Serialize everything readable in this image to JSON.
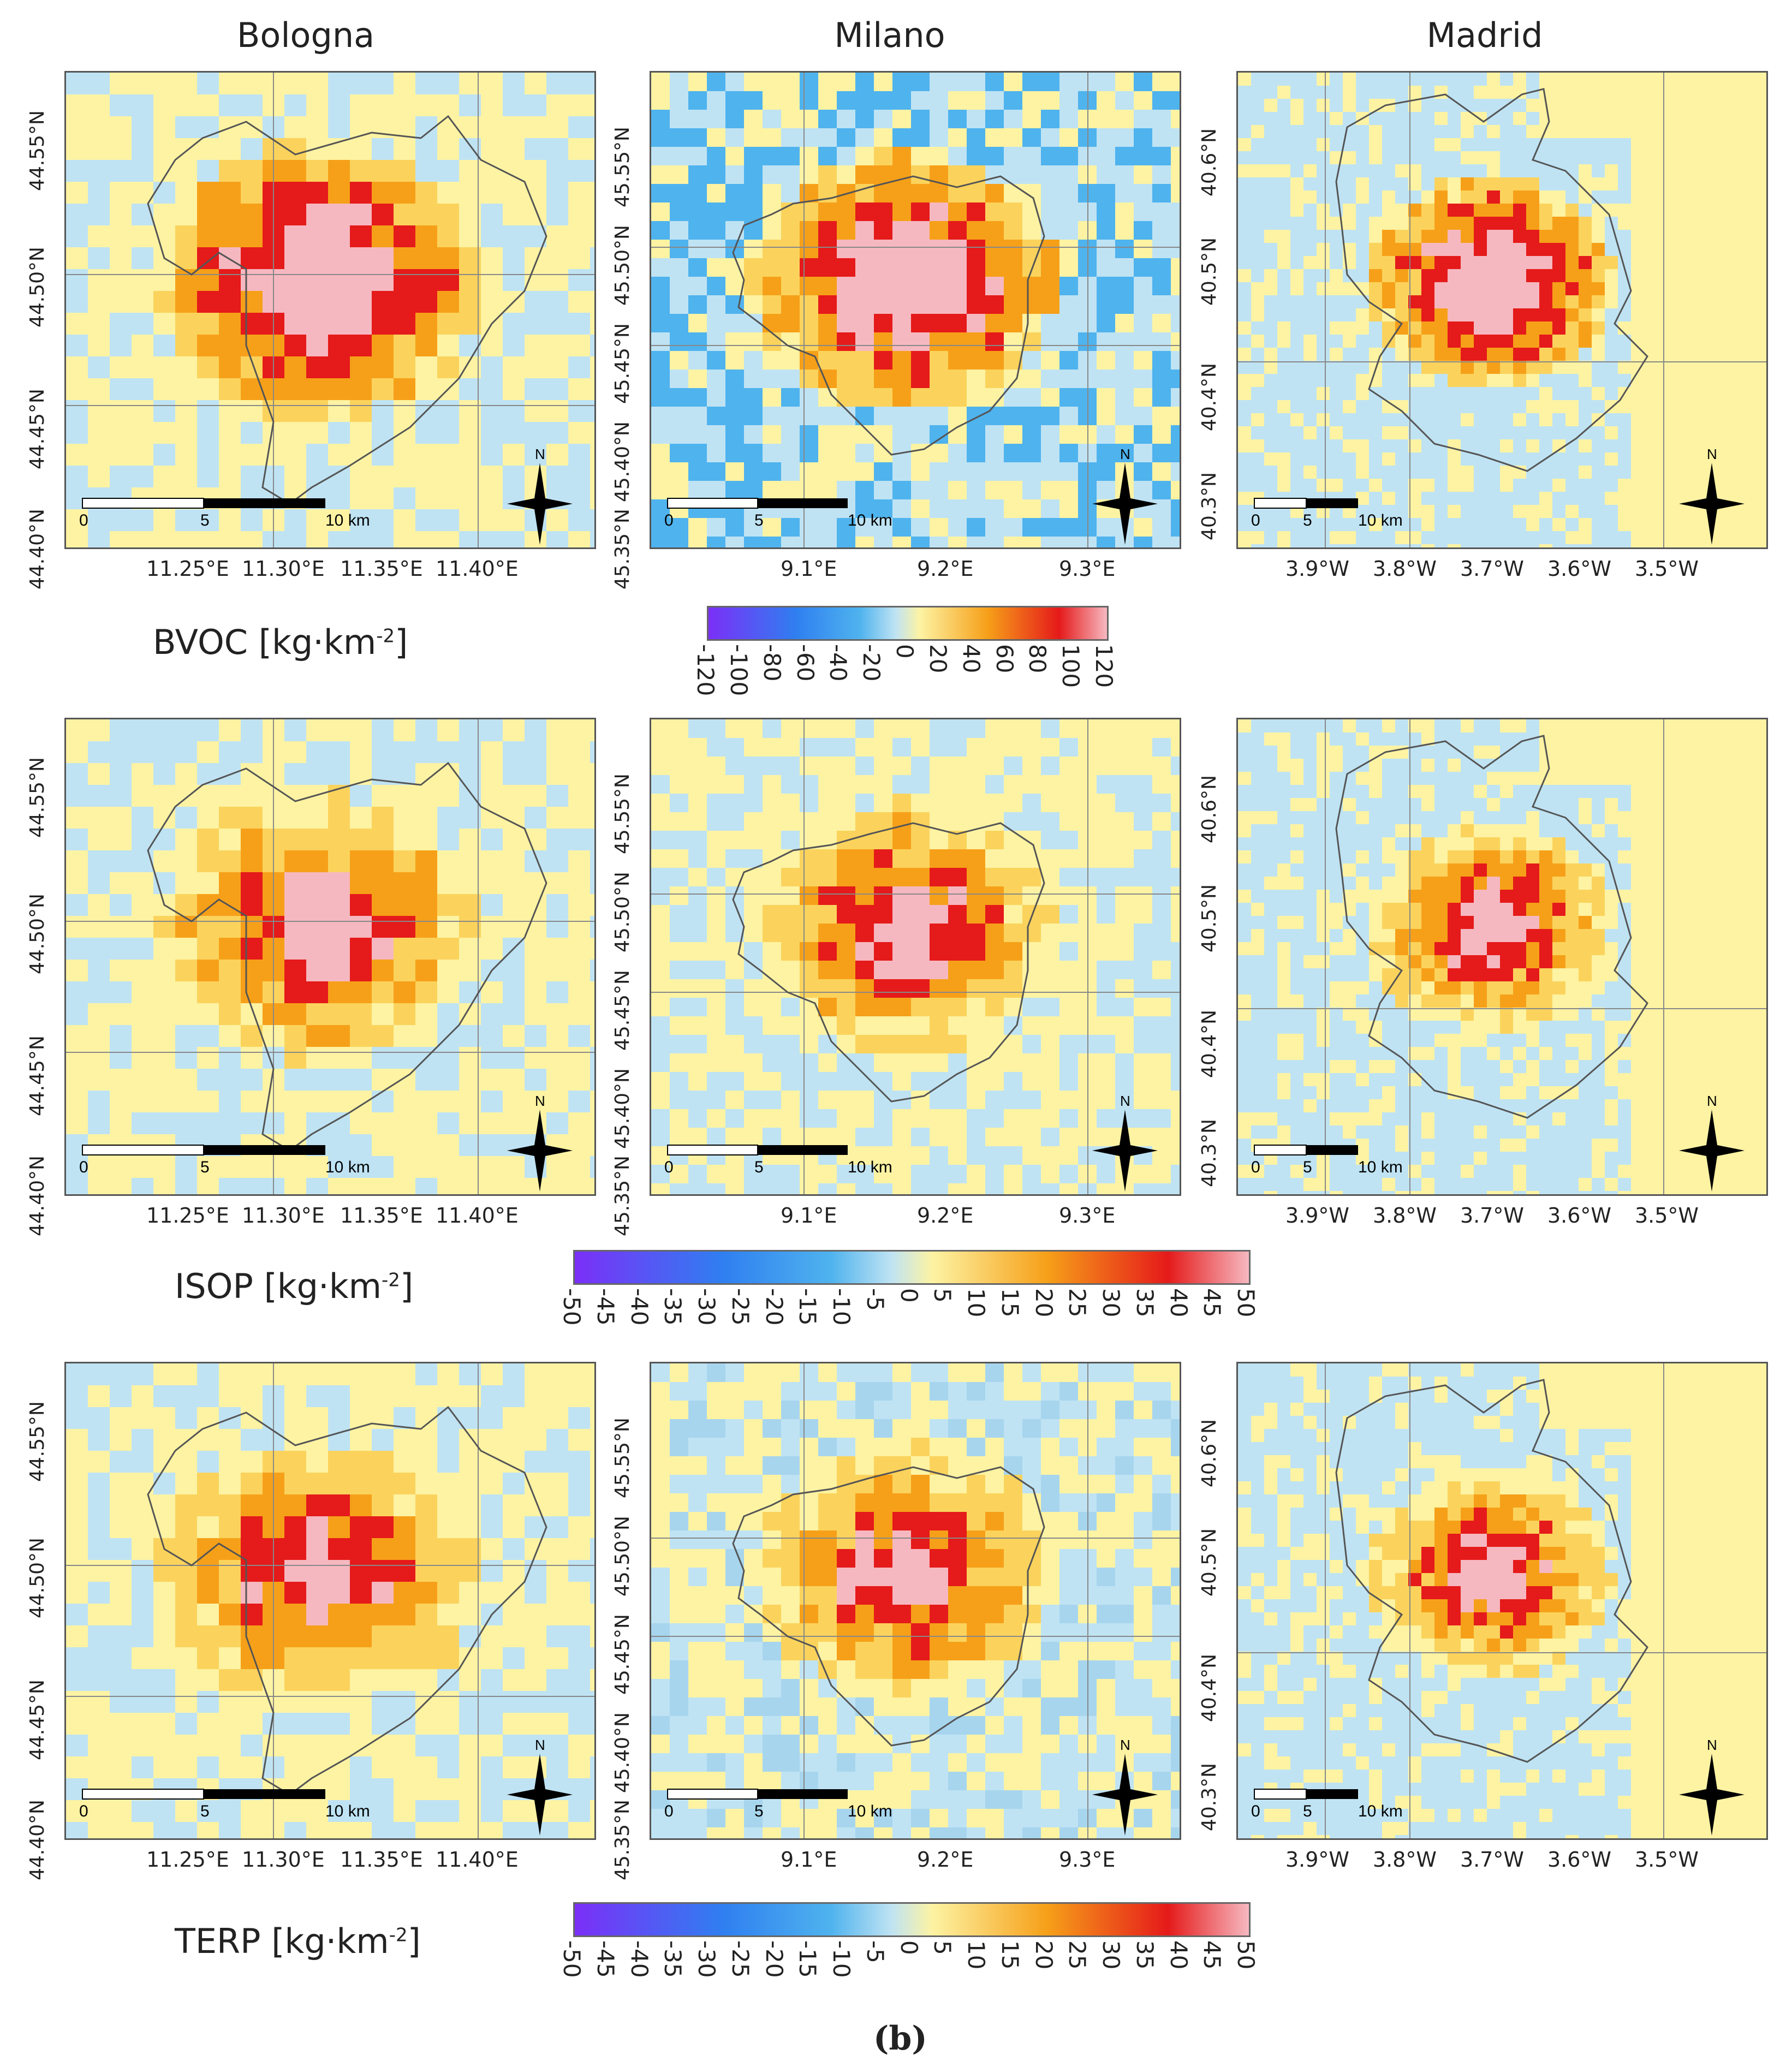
{
  "cities": [
    "Bologna",
    "Milano",
    "Madrid"
  ],
  "variables": [
    {
      "name": "BVOC",
      "unit_base": "[kg·km",
      "unit_exp": "-2",
      "unit_end": "]"
    },
    {
      "name": "ISOP",
      "unit_base": "[kg·km",
      "unit_exp": "-2",
      "unit_end": "]"
    },
    {
      "name": "TERP",
      "unit_base": "[kg·km",
      "unit_exp": "-2",
      "unit_end": "]"
    }
  ],
  "axes": {
    "bologna": {
      "x": [
        "11.25°E",
        "11.30°E",
        "11.35°E",
        "11.40°E"
      ],
      "y": [
        "44.55°N",
        "44.50°N",
        "44.45°N",
        "44.40°N"
      ]
    },
    "milano": {
      "x": [
        "9.1°E",
        "9.2°E",
        "9.3°E"
      ],
      "y": [
        "45.55°N",
        "45.50°N",
        "45.45°N",
        "45.40°N",
        "45.35°N"
      ]
    },
    "madrid": {
      "x": [
        "3.9°W",
        "3.8°W",
        "3.7°W",
        "3.6°W",
        "3.5°W"
      ],
      "y": [
        "40.6°N",
        "40.5°N",
        "40.4°N",
        "40.3°N"
      ]
    }
  },
  "scalebars": {
    "bologna": {
      "labels": [
        "0",
        "5",
        "10 km"
      ]
    },
    "milano": {
      "labels": [
        "0",
        "5",
        "10 km"
      ]
    },
    "madrid": {
      "labels": [
        "0",
        "5",
        "10 km"
      ]
    }
  },
  "north_label": "N",
  "colorbars": {
    "bvoc": [
      "-120",
      "-100",
      "-80",
      "-60",
      "-40",
      "-20",
      "0",
      "20",
      "40",
      "60",
      "80",
      "100",
      "120"
    ],
    "isop": [
      "-50",
      "-45",
      "-40",
      "-35",
      "-30",
      "-25",
      "-20",
      "-15",
      "-10",
      "-5",
      "0",
      "5",
      "10",
      "15",
      "20",
      "25",
      "30",
      "35",
      "40",
      "45",
      "50"
    ],
    "terp": [
      "-50",
      "-45",
      "-40",
      "-35",
      "-30",
      "-25",
      "-20",
      "-15",
      "-10",
      "-5",
      "0",
      "5",
      "10",
      "15",
      "20",
      "25",
      "30",
      "35",
      "40",
      "45",
      "50"
    ]
  },
  "colors": {
    "negative_low": "#7b2ff7",
    "negative_mid": "#2f7ff0",
    "near_zero_low": "#bfe3f3",
    "near_zero_high": "#fdf3a3",
    "mid_positive": "#f6a019",
    "high_positive": "#e51a1a",
    "max_positive": "#f6b8c0"
  },
  "chart_data": [
    {
      "type": "heatmap",
      "title": "BVOC [kg·km-2]",
      "panels": [
        "Bologna",
        "Milano",
        "Madrid"
      ],
      "colorbar_range": [
        -120,
        120
      ]
    },
    {
      "type": "heatmap",
      "title": "ISOP [kg·km-2]",
      "panels": [
        "Bologna",
        "Milano",
        "Madrid"
      ],
      "colorbar_range": [
        -50,
        50
      ]
    },
    {
      "type": "heatmap",
      "title": "TERP [kg·km-2]",
      "panels": [
        "Bologna",
        "Milano",
        "Madrid"
      ],
      "colorbar_range": [
        -50,
        50
      ]
    }
  ],
  "panel_label": "(b)"
}
